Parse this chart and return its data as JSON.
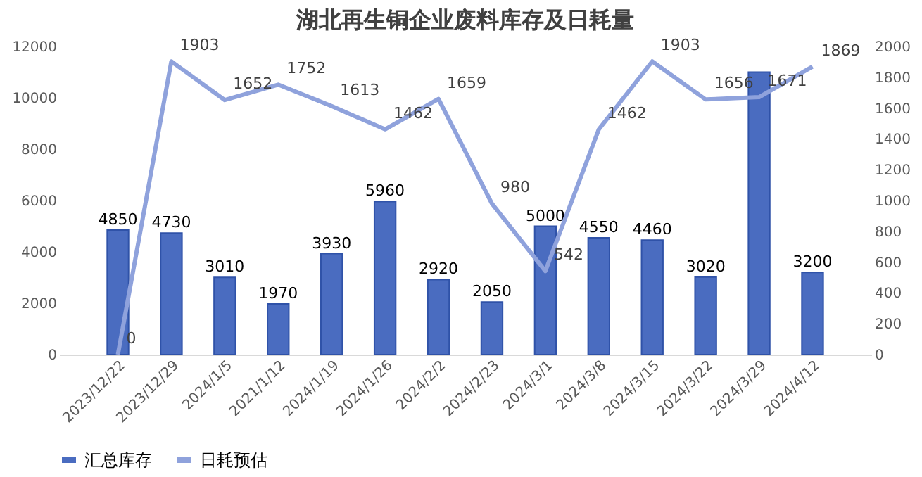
{
  "chart_data": {
    "type": "bar",
    "title": "湖北再生铜企业废料库存及日耗量",
    "categories": [
      "2023/12/22",
      "2023/12/29",
      "2024/1/5",
      "2021/1/12",
      "2024/1/19",
      "2024/1/26",
      "2024/2/2",
      "2024/2/23",
      "2024/3/1",
      "2024/3/8",
      "2024/3/15",
      "2024/3/22",
      "2024/3/29",
      "2024/4/12"
    ],
    "series": [
      {
        "name": "汇总库存",
        "color": "#4a6cc0",
        "values": [
          4850,
          4730,
          3010,
          1970,
          3930,
          5960,
          2920,
          2050,
          5000,
          4550,
          4460,
          3020,
          11000,
          3200
        ],
        "value_labels": [
          "4850",
          "4730",
          "3010",
          "1970",
          "3930",
          "5960",
          "2920",
          "2050",
          "5000",
          "4550",
          "4460",
          "3020",
          null,
          "3200"
        ]
      },
      {
        "name": "日耗预估",
        "type": "line",
        "axis": "y2",
        "color": "#8fa2dc",
        "values": [
          0,
          1903,
          1652,
          1752,
          1613,
          1462,
          1659,
          980,
          542,
          1462,
          1903,
          1656,
          1671,
          1869
        ],
        "value_labels": [
          "0",
          "1903",
          "1652",
          "1752",
          "1613",
          "1462",
          "1659",
          "980",
          "542",
          "1462",
          "1903",
          "1656",
          "1671",
          "1869"
        ]
      }
    ],
    "ylim": [
      0,
      12000
    ],
    "yticks": [
      0,
      2000,
      4000,
      6000,
      8000,
      10000,
      12000
    ],
    "y2lim": [
      0,
      2000
    ],
    "y2ticks": [
      0,
      200,
      400,
      600,
      800,
      1000,
      1200,
      1400,
      1600,
      1800,
      2000
    ],
    "grid": false,
    "legend": "bottom",
    "marker": "none"
  }
}
